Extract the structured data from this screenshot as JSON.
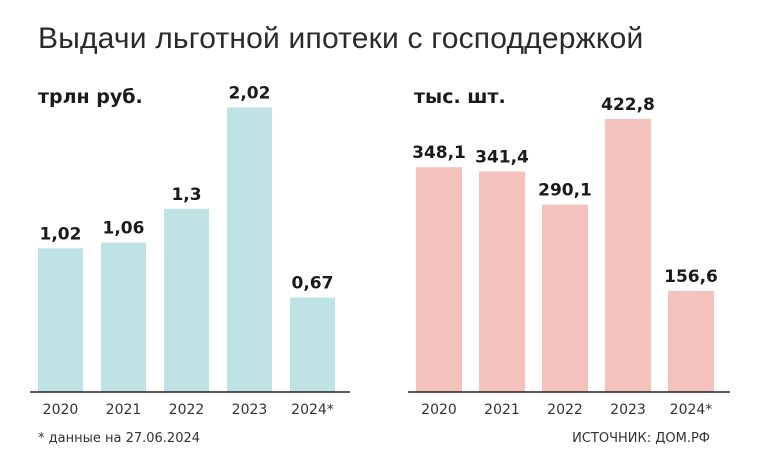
{
  "title": "Выдачи льготной ипотеки с господдержкой",
  "footnote": "* данные на 27.06.2024",
  "source": "ИСТОЧНИК: ДОМ.РФ",
  "colors": {
    "left_bar": "#bfe3e4",
    "right_bar": "#f5c1bd",
    "axis": "#222222"
  },
  "chart_data": [
    {
      "type": "bar",
      "title": "",
      "unit": "трлн руб.",
      "categories": [
        "2020",
        "2021",
        "2022",
        "2023",
        "2024*"
      ],
      "values": [
        1.02,
        1.06,
        1.3,
        2.02,
        0.67
      ],
      "value_labels": [
        "1,02",
        "1,06",
        "1,3",
        "2,02",
        "0,67"
      ],
      "ylim": [
        0,
        2.2
      ],
      "grid": false,
      "xlabel": "",
      "ylabel": ""
    },
    {
      "type": "bar",
      "title": "",
      "unit": "тыс. шт.",
      "categories": [
        "2020",
        "2021",
        "2022",
        "2023",
        "2024*"
      ],
      "values": [
        348.1,
        341.4,
        290.1,
        422.8,
        156.6
      ],
      "value_labels": [
        "348,1",
        "341,4",
        "290,1",
        "422,8",
        "156,6"
      ],
      "ylim": [
        0,
        480
      ],
      "grid": false,
      "xlabel": "",
      "ylabel": ""
    }
  ]
}
